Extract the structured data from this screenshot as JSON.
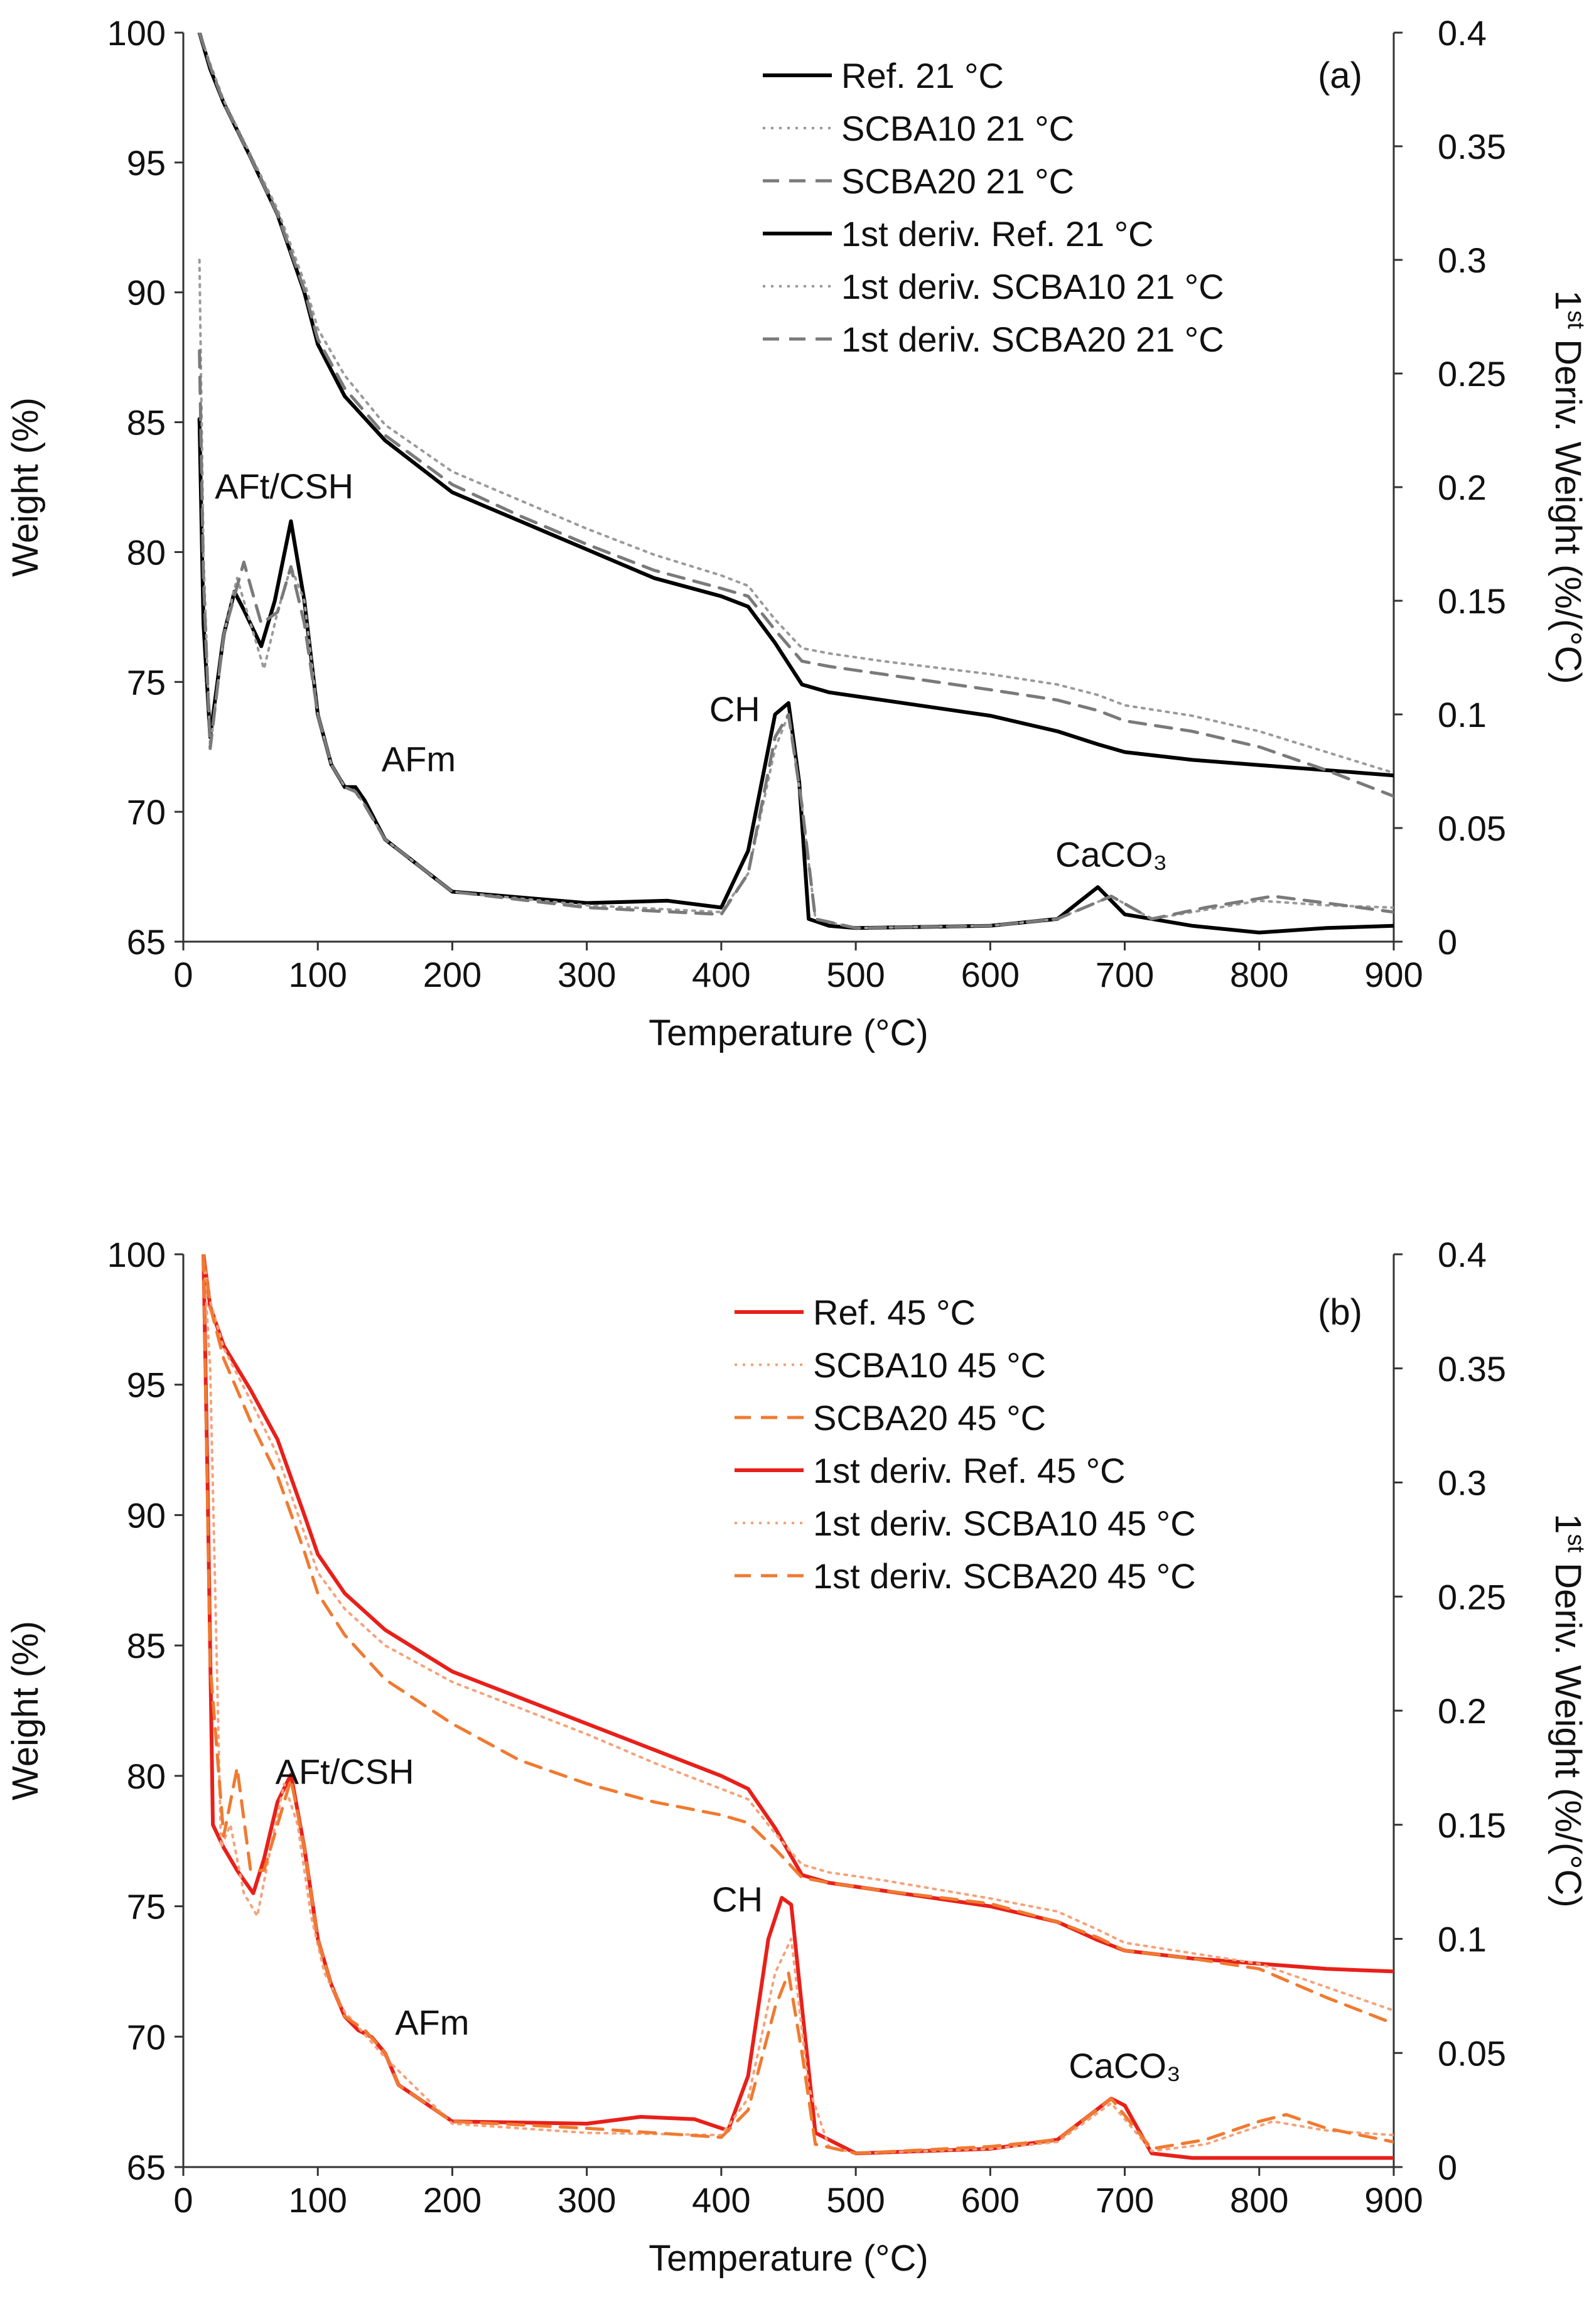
{
  "chart_data": [
    {
      "type": "line",
      "panel_label": "(a)",
      "xlabel": "Temperature (°C)",
      "ylabel": "Weight (%)",
      "y2label_pre": "1",
      "y2label_sup": "st",
      "y2label_post": " Deriv. Weight (%/(°C)",
      "xlim": [
        0,
        900
      ],
      "ylim": [
        65,
        100
      ],
      "y2lim": [
        0,
        0.4
      ],
      "xticks": [
        0,
        100,
        200,
        300,
        400,
        500,
        600,
        700,
        800,
        900
      ],
      "yticks": [
        65,
        70,
        75,
        80,
        85,
        90,
        95,
        100
      ],
      "y2ticks": [
        0,
        0.05,
        0.1,
        0.15,
        0.2,
        0.25,
        0.3,
        0.35,
        0.4
      ],
      "y2ticklabels": [
        "0",
        "0.05",
        "0.1",
        "0.15",
        "0.2",
        "0.25",
        "0.3",
        "0.35",
        "0.4"
      ],
      "legend_position": "top-right",
      "annotations": [
        {
          "text": "AFt/CSH",
          "x": 75,
          "y2": 0.195
        },
        {
          "text": "AFm",
          "x": 175,
          "y2": 0.075
        },
        {
          "text": "CH",
          "x": 410,
          "y2": 0.097
        },
        {
          "text": "CaCO₃",
          "x": 690,
          "y2": 0.033
        }
      ],
      "series": [
        {
          "name": "Ref. 21 °C",
          "axis": "left",
          "color": "#000000",
          "dash": "solid",
          "width": 6,
          "x": [
            12,
            20,
            30,
            50,
            70,
            90,
            100,
            120,
            150,
            200,
            250,
            300,
            350,
            400,
            420,
            440,
            460,
            480,
            520,
            600,
            650,
            680,
            700,
            750,
            800,
            850,
            900
          ],
          "y": [
            100,
            98.6,
            97.3,
            95.2,
            93.0,
            90.0,
            88.0,
            86.0,
            84.3,
            82.3,
            81.2,
            80.1,
            79.0,
            78.3,
            77.9,
            76.5,
            74.9,
            74.6,
            74.3,
            73.7,
            73.1,
            72.6,
            72.3,
            72.0,
            71.8,
            71.6,
            71.4
          ]
        },
        {
          "name": "SCBA10 21 °C",
          "axis": "left",
          "color": "#9a9a9a",
          "dash": "dot",
          "width": 4,
          "x": [
            12,
            20,
            30,
            50,
            70,
            90,
            100,
            120,
            150,
            200,
            250,
            300,
            350,
            400,
            420,
            440,
            460,
            480,
            520,
            600,
            650,
            680,
            700,
            750,
            800,
            850,
            900
          ],
          "y": [
            100,
            98.8,
            97.4,
            95.3,
            93.2,
            90.4,
            88.6,
            86.8,
            84.9,
            83.1,
            82.0,
            80.9,
            79.9,
            79.1,
            78.7,
            77.4,
            76.3,
            76.1,
            75.8,
            75.3,
            74.9,
            74.5,
            74.1,
            73.7,
            73.1,
            72.3,
            71.5
          ]
        },
        {
          "name": "SCBA20 21 °C",
          "axis": "left",
          "color": "#7a7a7a",
          "dash": "dash",
          "width": 5,
          "x": [
            12,
            20,
            30,
            50,
            70,
            90,
            100,
            120,
            150,
            200,
            250,
            300,
            350,
            400,
            420,
            440,
            460,
            480,
            520,
            600,
            650,
            680,
            700,
            750,
            800,
            850,
            900
          ],
          "y": [
            100,
            98.7,
            97.3,
            95.2,
            93.0,
            90.1,
            88.2,
            86.3,
            84.5,
            82.6,
            81.4,
            80.3,
            79.3,
            78.6,
            78.3,
            77.0,
            75.8,
            75.6,
            75.3,
            74.7,
            74.3,
            73.9,
            73.5,
            73.1,
            72.5,
            71.6,
            70.6
          ]
        },
        {
          "name": "1st deriv. Ref. 21 °C",
          "axis": "right",
          "color": "#000000",
          "dash": "solid",
          "width": 6,
          "x": [
            12,
            15,
            20,
            30,
            38,
            45,
            58,
            68,
            80,
            90,
            100,
            110,
            120,
            128,
            135,
            150,
            200,
            300,
            360,
            400,
            420,
            440,
            450,
            458,
            465,
            480,
            500,
            600,
            650,
            680,
            700,
            750,
            800,
            850,
            900
          ],
          "y": [
            0.23,
            0.14,
            0.09,
            0.135,
            0.154,
            0.146,
            0.13,
            0.15,
            0.185,
            0.15,
            0.1,
            0.078,
            0.068,
            0.068,
            0.062,
            0.045,
            0.022,
            0.017,
            0.018,
            0.015,
            0.04,
            0.1,
            0.105,
            0.07,
            0.01,
            0.007,
            0.006,
            0.007,
            0.01,
            0.024,
            0.012,
            0.007,
            0.004,
            0.006,
            0.007
          ]
        },
        {
          "name": "1st deriv. SCBA10 21 °C",
          "axis": "right",
          "color": "#9a9a9a",
          "dash": "dot",
          "width": 4,
          "x": [
            12,
            15,
            20,
            30,
            40,
            50,
            60,
            70,
            80,
            90,
            100,
            110,
            120,
            128,
            135,
            150,
            200,
            300,
            400,
            420,
            440,
            450,
            460,
            470,
            500,
            600,
            650,
            690,
            720,
            750,
            800,
            850,
            900
          ],
          "y": [
            0.3,
            0.17,
            0.085,
            0.135,
            0.16,
            0.14,
            0.12,
            0.145,
            0.165,
            0.15,
            0.1,
            0.078,
            0.068,
            0.066,
            0.06,
            0.045,
            0.022,
            0.016,
            0.013,
            0.03,
            0.085,
            0.1,
            0.06,
            0.01,
            0.006,
            0.007,
            0.01,
            0.02,
            0.01,
            0.013,
            0.018,
            0.016,
            0.015
          ]
        },
        {
          "name": "1st deriv. SCBA20 21 °C",
          "axis": "right",
          "color": "#7a7a7a",
          "dash": "dash",
          "width": 5,
          "x": [
            12,
            15,
            20,
            30,
            45,
            58,
            70,
            80,
            90,
            100,
            110,
            120,
            128,
            135,
            150,
            200,
            300,
            400,
            420,
            440,
            450,
            460,
            470,
            500,
            600,
            650,
            690,
            720,
            760,
            810,
            850,
            900
          ],
          "y": [
            0.26,
            0.16,
            0.085,
            0.135,
            0.167,
            0.14,
            0.145,
            0.165,
            0.14,
            0.1,
            0.078,
            0.068,
            0.066,
            0.06,
            0.045,
            0.022,
            0.015,
            0.012,
            0.03,
            0.09,
            0.1,
            0.06,
            0.01,
            0.006,
            0.007,
            0.01,
            0.02,
            0.01,
            0.015,
            0.02,
            0.017,
            0.013
          ]
        }
      ]
    },
    {
      "type": "line",
      "panel_label": "(b)",
      "xlabel": "Temperature (°C)",
      "ylabel": "Weight (%)",
      "y2label_pre": "1",
      "y2label_sup": "st",
      "y2label_post": " Deriv. Weight (%/(°C)",
      "xlim": [
        0,
        900
      ],
      "ylim": [
        65,
        100
      ],
      "y2lim": [
        0,
        0.4
      ],
      "xticks": [
        0,
        100,
        200,
        300,
        400,
        500,
        600,
        700,
        800,
        900
      ],
      "yticks": [
        65,
        70,
        75,
        80,
        85,
        90,
        95,
        100
      ],
      "y2ticks": [
        0,
        0.05,
        0.1,
        0.15,
        0.2,
        0.25,
        0.3,
        0.35,
        0.4
      ],
      "y2ticklabels": [
        "0",
        "0.05",
        "0.1",
        "0.15",
        "0.2",
        "0.25",
        "0.3",
        "0.35",
        "0.4"
      ],
      "legend_position": "top-right",
      "annotations": [
        {
          "text": "AFt/CSH",
          "x": 120,
          "y2": 0.168
        },
        {
          "text": "AFm",
          "x": 185,
          "y2": 0.058
        },
        {
          "text": "CH",
          "x": 412,
          "y2": 0.112
        },
        {
          "text": "CaCO₃",
          "x": 700,
          "y2": 0.039
        }
      ],
      "series": [
        {
          "name": "Ref. 45 °C",
          "axis": "left",
          "color": "#e8201a",
          "dash": "solid",
          "width": 6,
          "x": [
            15,
            20,
            30,
            50,
            70,
            90,
            100,
            120,
            150,
            200,
            250,
            300,
            350,
            400,
            420,
            440,
            460,
            480,
            520,
            600,
            650,
            680,
            700,
            750,
            800,
            850,
            900
          ],
          "y": [
            100,
            98.0,
            96.5,
            94.8,
            92.9,
            90.0,
            88.5,
            87.0,
            85.6,
            84.0,
            83.0,
            82.0,
            81.0,
            80.0,
            79.5,
            78.0,
            76.2,
            75.9,
            75.6,
            75.0,
            74.4,
            73.7,
            73.3,
            73.0,
            72.8,
            72.6,
            72.5
          ]
        },
        {
          "name": "SCBA10 45 °C",
          "axis": "left",
          "color": "#f5a27a",
          "dash": "dot",
          "width": 4,
          "x": [
            15,
            20,
            30,
            50,
            70,
            90,
            100,
            120,
            150,
            200,
            250,
            300,
            350,
            400,
            420,
            440,
            460,
            480,
            520,
            600,
            650,
            680,
            700,
            750,
            800,
            850,
            900
          ],
          "y": [
            100,
            98.2,
            96.4,
            94.4,
            92.3,
            89.3,
            87.8,
            86.4,
            85.0,
            83.6,
            82.6,
            81.6,
            80.5,
            79.5,
            79.1,
            77.8,
            76.6,
            76.3,
            76.0,
            75.3,
            74.8,
            74.1,
            73.6,
            73.2,
            72.8,
            71.9,
            71.0
          ]
        },
        {
          "name": "SCBA20 45 °C",
          "axis": "left",
          "color": "#f07a30",
          "dash": "dash",
          "width": 5,
          "x": [
            15,
            20,
            30,
            50,
            70,
            90,
            100,
            120,
            150,
            200,
            250,
            300,
            350,
            400,
            420,
            440,
            460,
            480,
            520,
            600,
            650,
            680,
            700,
            750,
            800,
            850,
            900
          ],
          "y": [
            100,
            98.0,
            96.0,
            93.6,
            91.5,
            88.6,
            87.0,
            85.4,
            83.7,
            82.0,
            80.6,
            79.7,
            79.0,
            78.5,
            78.2,
            77.2,
            76.1,
            75.9,
            75.6,
            75.1,
            74.4,
            73.8,
            73.3,
            73.0,
            72.6,
            71.5,
            70.5
          ]
        },
        {
          "name": "1st deriv. Ref. 45 °C",
          "axis": "right",
          "color": "#e8201a",
          "dash": "solid",
          "width": 6,
          "x": [
            15,
            18,
            22,
            30,
            40,
            52,
            60,
            70,
            80,
            90,
            100,
            110,
            120,
            130,
            140,
            150,
            160,
            200,
            300,
            340,
            380,
            405,
            420,
            435,
            445,
            452,
            460,
            470,
            500,
            600,
            650,
            690,
            700,
            720,
            750,
            800,
            850,
            900
          ],
          "y": [
            0.4,
            0.3,
            0.15,
            0.14,
            0.13,
            0.12,
            0.135,
            0.16,
            0.172,
            0.14,
            0.1,
            0.08,
            0.066,
            0.06,
            0.057,
            0.05,
            0.036,
            0.02,
            0.019,
            0.022,
            0.021,
            0.016,
            0.04,
            0.1,
            0.118,
            0.115,
            0.07,
            0.015,
            0.006,
            0.008,
            0.012,
            0.03,
            0.027,
            0.006,
            0.004,
            0.004,
            0.004,
            0.004
          ]
        },
        {
          "name": "1st deriv. SCBA10 45 °C",
          "axis": "right",
          "color": "#f5a27a",
          "dash": "dot",
          "width": 4,
          "x": [
            15,
            20,
            28,
            35,
            45,
            55,
            65,
            75,
            85,
            95,
            105,
            120,
            150,
            200,
            300,
            400,
            420,
            440,
            452,
            465,
            480,
            500,
            600,
            650,
            690,
            720,
            760,
            810,
            850,
            900
          ],
          "y": [
            0.4,
            0.35,
            0.14,
            0.15,
            0.12,
            0.11,
            0.14,
            0.168,
            0.15,
            0.11,
            0.085,
            0.068,
            0.048,
            0.019,
            0.015,
            0.014,
            0.03,
            0.085,
            0.1,
            0.035,
            0.009,
            0.006,
            0.008,
            0.011,
            0.028,
            0.007,
            0.01,
            0.02,
            0.016,
            0.014
          ]
        },
        {
          "name": "1st deriv. SCBA20 45 °C",
          "axis": "right",
          "color": "#f07a30",
          "dash": "dash",
          "width": 5,
          "x": [
            15,
            20,
            30,
            40,
            50,
            60,
            70,
            80,
            90,
            100,
            110,
            120,
            135,
            150,
            160,
            200,
            300,
            400,
            420,
            440,
            450,
            460,
            470,
            500,
            600,
            650,
            690,
            720,
            760,
            800,
            820,
            850,
            900
          ],
          "y": [
            0.4,
            0.22,
            0.145,
            0.175,
            0.13,
            0.13,
            0.15,
            0.17,
            0.14,
            0.1,
            0.08,
            0.066,
            0.06,
            0.05,
            0.036,
            0.02,
            0.017,
            0.013,
            0.025,
            0.07,
            0.085,
            0.05,
            0.01,
            0.006,
            0.009,
            0.012,
            0.03,
            0.008,
            0.012,
            0.02,
            0.023,
            0.017,
            0.011
          ]
        }
      ]
    }
  ]
}
